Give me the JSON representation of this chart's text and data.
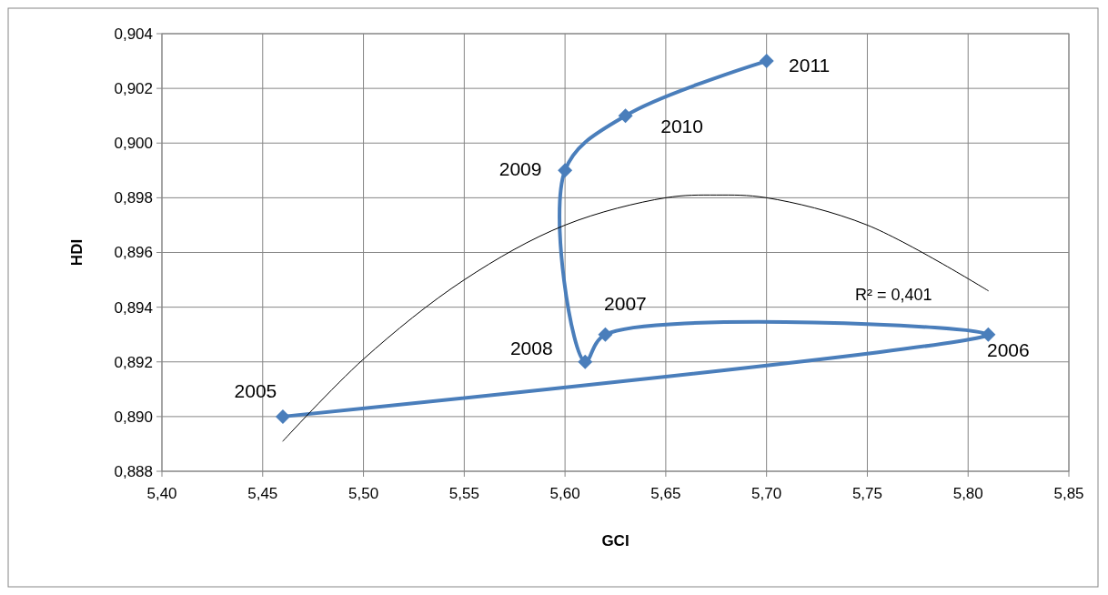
{
  "chart_data": {
    "type": "line",
    "xlabel": "GCI",
    "ylabel": "HDI",
    "xlim": [
      5.4,
      5.85
    ],
    "ylim": [
      0.888,
      0.904
    ],
    "xticks": [
      {
        "value": 5.4,
        "label": "5,40"
      },
      {
        "value": 5.45,
        "label": "5,45"
      },
      {
        "value": 5.5,
        "label": "5,50"
      },
      {
        "value": 5.55,
        "label": "5,55"
      },
      {
        "value": 5.6,
        "label": "5,60"
      },
      {
        "value": 5.65,
        "label": "5,65"
      },
      {
        "value": 5.7,
        "label": "5,70"
      },
      {
        "value": 5.75,
        "label": "5,75"
      },
      {
        "value": 5.8,
        "label": "5,80"
      },
      {
        "value": 5.85,
        "label": "5,85"
      }
    ],
    "yticks": [
      {
        "value": 0.888,
        "label": "0,888"
      },
      {
        "value": 0.89,
        "label": "0,890"
      },
      {
        "value": 0.892,
        "label": "0,892"
      },
      {
        "value": 0.894,
        "label": "0,894"
      },
      {
        "value": 0.896,
        "label": "0,896"
      },
      {
        "value": 0.898,
        "label": "0,898"
      },
      {
        "value": 0.9,
        "label": "0,900"
      },
      {
        "value": 0.902,
        "label": "0,902"
      },
      {
        "value": 0.904,
        "label": "0,904"
      }
    ],
    "grid": true,
    "marker": "diamond",
    "series": [
      {
        "color": "#4a7ebb",
        "x": [
          5.46,
          5.81,
          5.62,
          5.61,
          5.6,
          5.63,
          5.7
        ],
        "values": [
          0.89,
          0.893,
          0.893,
          0.892,
          0.899,
          0.901,
          0.903
        ]
      },
      {
        "color": "#000000",
        "marker": "none",
        "x": [
          5.46,
          5.5,
          5.55,
          5.6,
          5.65,
          5.675,
          5.7,
          5.75,
          5.81
        ],
        "values": [
          0.8891,
          0.8921,
          0.895,
          0.897,
          0.898,
          0.8981,
          0.898,
          0.897,
          0.8946
        ]
      }
    ],
    "annotations": [
      {
        "text": "2005",
        "x": 5.46,
        "y": 0.89
      },
      {
        "text": "2006",
        "x": 5.81,
        "y": 0.893
      },
      {
        "text": "2007",
        "x": 5.62,
        "y": 0.893
      },
      {
        "text": "2008",
        "x": 5.61,
        "y": 0.892
      },
      {
        "text": "2009",
        "x": 5.6,
        "y": 0.899
      },
      {
        "text": "2010",
        "x": 5.63,
        "y": 0.901
      },
      {
        "text": "2011",
        "x": 5.7,
        "y": 0.903
      },
      "R² = 0,401"
    ]
  }
}
